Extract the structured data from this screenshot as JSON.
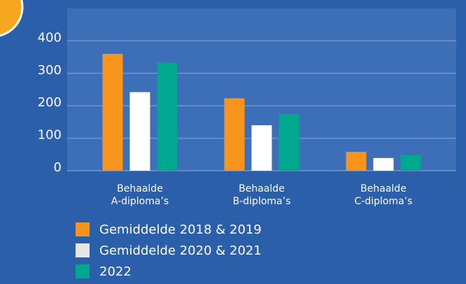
{
  "chart_data": {
    "type": "bar",
    "categories": [
      "Behaalde\nA-diploma’s",
      "Behaalde\nB-diploma’s",
      "Behaalde\nC-diploma’s"
    ],
    "series": [
      {
        "name": "Gemiddelde 2018 & 2019",
        "color": "#f7941d",
        "values": [
          360,
          223,
          58
        ]
      },
      {
        "name": "Gemiddelde 2020 & 2021",
        "color": "#ffffff",
        "values": [
          242,
          140,
          39
        ]
      },
      {
        "name": "2022",
        "color": "#00a88f",
        "values": [
          333,
          175,
          48
        ]
      }
    ],
    "ylim": [
      0,
      500
    ],
    "yticks": [
      0,
      100,
      200,
      300,
      400
    ],
    "grid": true
  }
}
